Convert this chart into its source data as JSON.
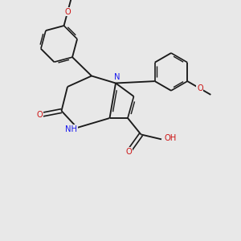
{
  "bg_color": "#e8e8e8",
  "bond_color": "#1a1a1a",
  "n_color": "#1a1aee",
  "o_color": "#cc1111",
  "figsize": [
    3.0,
    3.0
  ],
  "dpi": 100,
  "xlim": [
    0,
    10
  ],
  "ylim": [
    0,
    10
  ],
  "lw_single": 1.35,
  "lw_double": 1.2,
  "dbl_off": 0.1,
  "ring_r": 0.78,
  "fs_label": 7.2
}
